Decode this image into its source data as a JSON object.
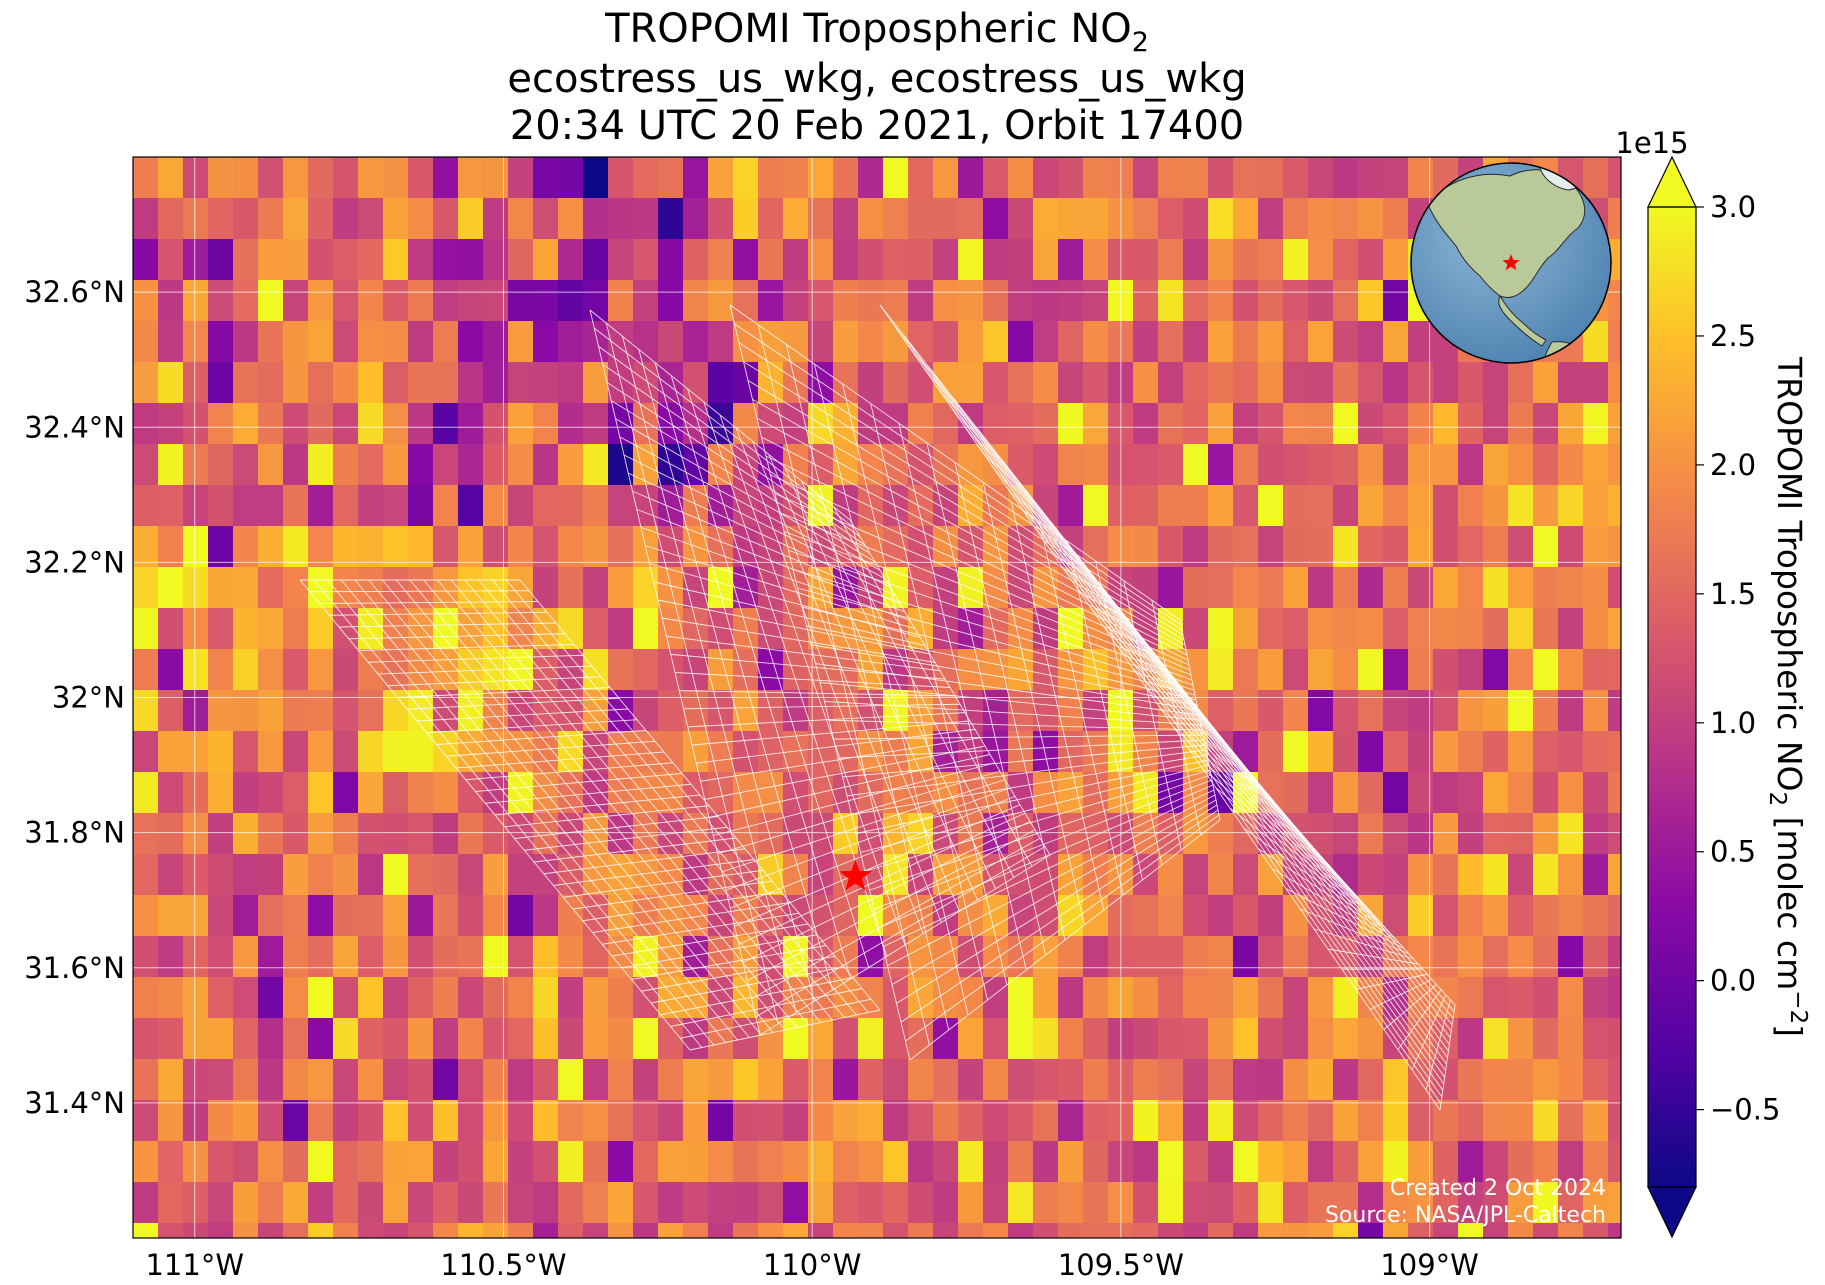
{
  "title": {
    "line1_prefix": "TROPOMI Tropospheric NO",
    "line1_sub": "2",
    "line2": "ecostress_us_wkg, ecostress_us_wkg",
    "line3": "20:34 UTC 20 Feb 2021, Orbit 17400"
  },
  "map": {
    "lon_range": [
      -111.1,
      -108.69
    ],
    "lat_range": [
      31.2,
      32.8
    ],
    "lon_ticks": [
      {
        "value": -111.0,
        "label": "111°W"
      },
      {
        "value": -110.5,
        "label": "110.5°W"
      },
      {
        "value": -110.0,
        "label": "110°W"
      },
      {
        "value": -109.5,
        "label": "109.5°W"
      },
      {
        "value": -109.0,
        "label": "109°W"
      }
    ],
    "lat_ticks": [
      {
        "value": 31.4,
        "label": "31.4°N"
      },
      {
        "value": 31.6,
        "label": "31.6°N"
      },
      {
        "value": 31.8,
        "label": "31.8°N"
      },
      {
        "value": 32.0,
        "label": "32°N"
      },
      {
        "value": 32.2,
        "label": "32.2°N"
      },
      {
        "value": 32.4,
        "label": "32.4°N"
      },
      {
        "value": 32.6,
        "label": "32.6°N"
      }
    ],
    "gridlines": true,
    "target_marker": {
      "lon": -109.93,
      "lat": 31.735,
      "symbol": "star",
      "color": "#ff0000"
    },
    "inset_globe": {
      "position": "top-right",
      "marker_color": "#ff0000"
    }
  },
  "colorbar": {
    "label_prefix": "TROPOMI Tropospheric NO",
    "label_sub": "2",
    "label_suffix": " [molec cm",
    "label_sup": "−2",
    "label_end": "]",
    "exponent": "1e15",
    "range": [
      -0.8,
      3.0
    ],
    "colormap": "plasma",
    "extend": "both",
    "ticks": [
      {
        "value": -0.5,
        "label": "−0.5"
      },
      {
        "value": 0.0,
        "label": "0.0"
      },
      {
        "value": 0.5,
        "label": "0.5"
      },
      {
        "value": 1.0,
        "label": "1.0"
      },
      {
        "value": 1.5,
        "label": "1.5"
      },
      {
        "value": 2.0,
        "label": "2.0"
      },
      {
        "value": 2.5,
        "label": "2.5"
      },
      {
        "value": 3.0,
        "label": "3.0"
      }
    ]
  },
  "footer": {
    "created": "Created 2 Oct 2024",
    "source": "Source: NASA/JPL-Caltech"
  }
}
